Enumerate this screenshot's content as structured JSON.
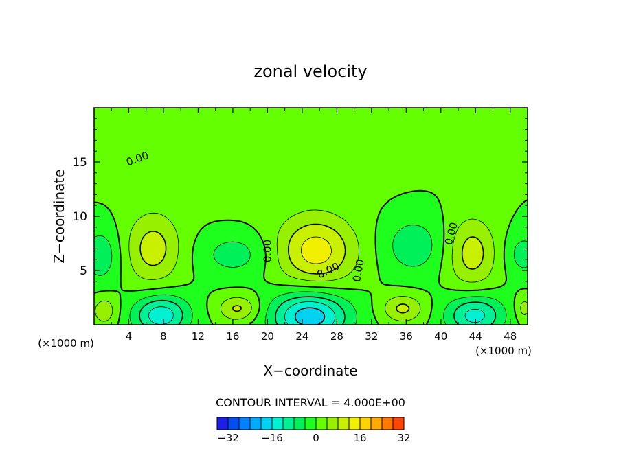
{
  "chart_data": {
    "type": "heatmap",
    "title": "zonal velocity",
    "xlabel": "X−coordinate",
    "ylabel": "Z−coordinate",
    "x_units_left": "(×1000 m)",
    "x_units_right": "(×1000 m)",
    "xlim": [
      0,
      50
    ],
    "ylim": [
      0,
      20
    ],
    "x_ticks": [
      4,
      8,
      12,
      16,
      20,
      24,
      28,
      32,
      36,
      40,
      44,
      48
    ],
    "y_ticks": [
      5,
      10,
      15
    ],
    "x_tick_labels": [
      "4",
      "8",
      "12",
      "16",
      "20",
      "24",
      "28",
      "32",
      "36",
      "40",
      "44",
      "48"
    ],
    "y_tick_labels": [
      "5",
      "10",
      "15"
    ],
    "background_value": 0,
    "contour_interval_text": "CONTOUR INTERVAL = 4.000E+00",
    "contour_interval": 4,
    "contour_labels": [
      {
        "text": "0.00",
        "x": 5,
        "z": 15.3,
        "angle": -20
      },
      {
        "text": "0.00",
        "x": 20,
        "z": 6.8,
        "angle": -90
      },
      {
        "text": "8.00",
        "x": 27,
        "z": 5.0,
        "angle": -25
      },
      {
        "text": "0.00",
        "x": 30.5,
        "z": 5.0,
        "angle": -80
      },
      {
        "text": "0.00",
        "x": 41.2,
        "z": 8.4,
        "angle": -75
      }
    ],
    "features": [
      {
        "x": 6.8,
        "z": 7.0,
        "rx": 3.2,
        "rz": 3.3,
        "amp": 10
      },
      {
        "x": 25.6,
        "z": 6.8,
        "rx": 4.5,
        "rz": 3.2,
        "amp": 14
      },
      {
        "x": 43.6,
        "z": 6.6,
        "rx": 2.8,
        "rz": 3.3,
        "amp": 10
      },
      {
        "x": 16.2,
        "z": 6.5,
        "rx": 4.0,
        "rz": 2.0,
        "amp": -6
      },
      {
        "x": 36.8,
        "z": 7.3,
        "rx": 3.4,
        "rz": 2.6,
        "amp": -7
      },
      {
        "x": 0.8,
        "z": 6.4,
        "rx": 2.2,
        "rz": 2.6,
        "amp": -7
      },
      {
        "x": 49.5,
        "z": 6.5,
        "rx": 2.0,
        "rz": 2.0,
        "amp": -6
      },
      {
        "x": 7.7,
        "z": 0.9,
        "rx": 3.2,
        "rz": 1.9,
        "amp": -15
      },
      {
        "x": 24.9,
        "z": 0.8,
        "rx": 4.4,
        "rz": 2.3,
        "amp": -19
      },
      {
        "x": 43.9,
        "z": 0.9,
        "rx": 3.3,
        "rz": 1.9,
        "amp": -14
      },
      {
        "x": 1.2,
        "z": 1.3,
        "rx": 1.5,
        "rz": 1.4,
        "amp": 7
      },
      {
        "x": 16.6,
        "z": 1.5,
        "rx": 2.3,
        "rz": 1.2,
        "amp": 9
      },
      {
        "x": 35.6,
        "z": 1.5,
        "rx": 2.4,
        "rz": 1.3,
        "amp": 9
      },
      {
        "x": 49.6,
        "z": 1.5,
        "rx": 1.0,
        "rz": 1.2,
        "amp": 6
      },
      {
        "x": 18.0,
        "z": 14.0,
        "rx": 14.0,
        "rz": 4.5,
        "amp": 1.2
      }
    ],
    "colorbar": {
      "colors": [
        "#7a00a8",
        "#3c00b4",
        "#1e1ee6",
        "#0050f0",
        "#0082ff",
        "#00aaff",
        "#00d2f0",
        "#00f0d2",
        "#00f096",
        "#00f05a",
        "#1eff1e",
        "#64ff00",
        "#96f000",
        "#c8f000",
        "#f0f000",
        "#ffd200",
        "#ffaa00",
        "#ff7800",
        "#ff4600",
        "#ff1e1e",
        "#ff5050",
        "#ff7878",
        "#ff9696"
      ],
      "min": -44,
      "step": 4,
      "tick_values": [
        -32,
        -16,
        0,
        16,
        32
      ],
      "tick_labels": [
        "−32",
        "−16",
        "0",
        "16",
        "32"
      ]
    }
  }
}
